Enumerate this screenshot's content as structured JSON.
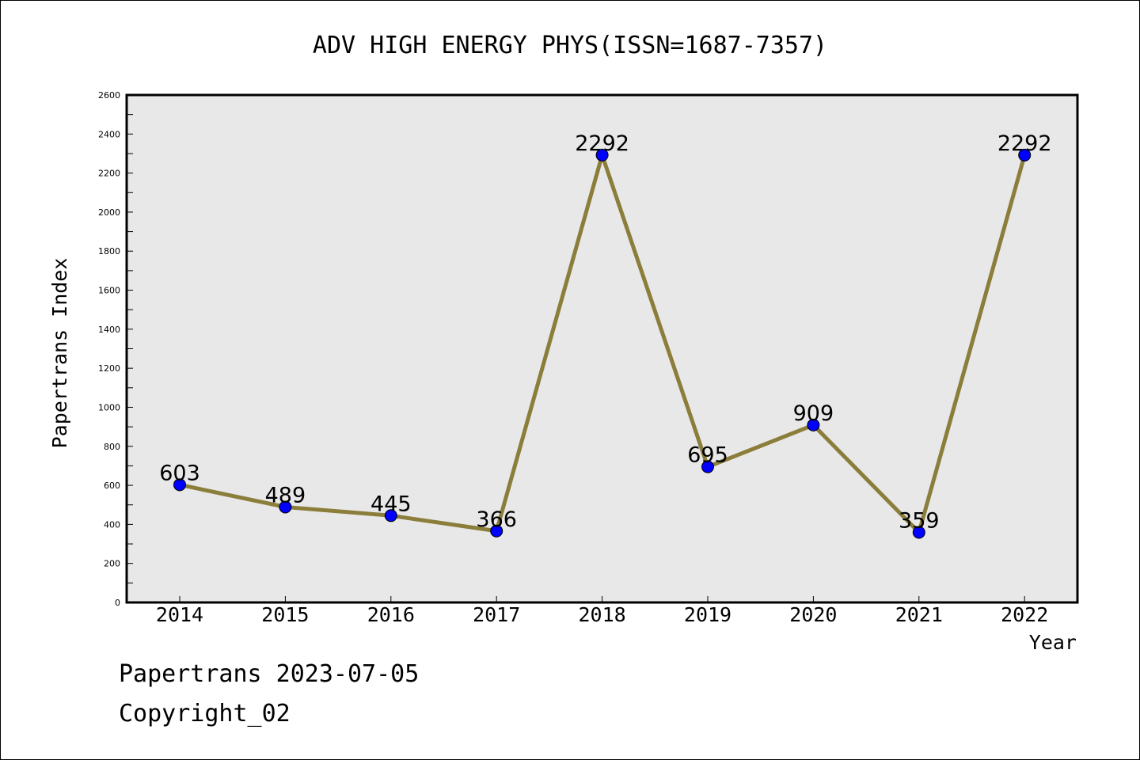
{
  "chart_data": {
    "type": "line",
    "title": "ADV HIGH ENERGY PHYS(ISSN=1687-7357)",
    "xlabel": "Year",
    "ylabel": "Papertrans Index",
    "categories": [
      "2014",
      "2015",
      "2016",
      "2017",
      "2018",
      "2019",
      "2020",
      "2021",
      "2022"
    ],
    "values": [
      603,
      489,
      445,
      366,
      2292,
      695,
      909,
      359,
      2292
    ],
    "ylim": [
      0,
      2600
    ],
    "yticks": [
      0,
      200,
      400,
      600,
      800,
      1000,
      1200,
      1400,
      1600,
      1800,
      2000,
      2200,
      2400,
      2600
    ],
    "grid": false,
    "legend": "none",
    "colors": {
      "line": "#8b7d3a",
      "marker": "#0000ff",
      "plot_background": "#e8e8e8"
    }
  },
  "footer": {
    "source": "Papertrans 2023-07-05",
    "copyright": "Copyright_02"
  }
}
